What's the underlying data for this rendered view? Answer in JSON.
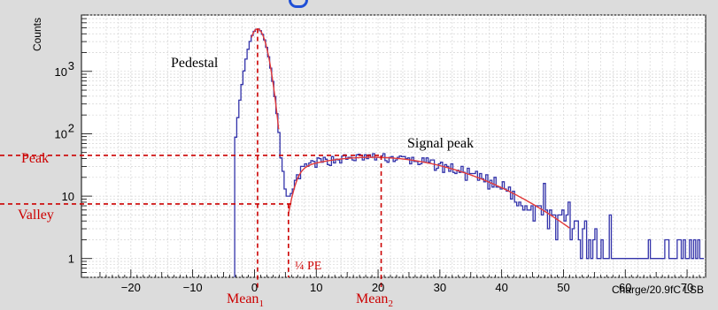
{
  "chart_data": {
    "type": "histogram",
    "xlabel": "Charge/20.9fC LSB",
    "ylabel": "Counts",
    "xlim": [
      -28,
      73
    ],
    "ylim": [
      0.5,
      8000
    ],
    "yscale": "log",
    "grid": true,
    "x_ticks": [
      -20,
      -10,
      0,
      10,
      20,
      30,
      40,
      50,
      60,
      70
    ],
    "y_ticks": [
      {
        "value": 1,
        "label": "1"
      },
      {
        "value": 10,
        "label": "10"
      },
      {
        "value": 100,
        "label": "10",
        "sup": "2"
      },
      {
        "value": 1000,
        "label": "10",
        "sup": "3"
      }
    ],
    "series_color": "#3333aa",
    "fit_color": "#e23a3a",
    "annotation_color": "#cc0000",
    "annotations": {
      "pedestal": "Pedestal",
      "signal_peak": "Signal peak",
      "peak": "Peak",
      "valley": "Valley",
      "quarter_pe": "¼ PE",
      "mean1": "Mean",
      "mean1_sub": "1",
      "mean2": "Mean",
      "mean2_sub": "2"
    },
    "guides": {
      "peak_y": 45,
      "valley_y": 7.5,
      "mean1_x": 0.5,
      "mean2_x": 20.5,
      "quarter_pe_x": 5.5
    }
  }
}
